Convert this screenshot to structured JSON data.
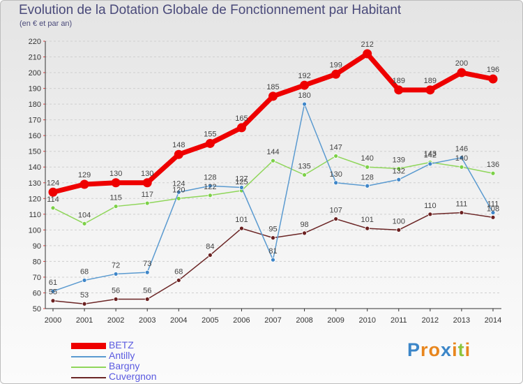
{
  "title": "Evolution de la Dotation Globale de Fonctionnement par Habitant",
  "subtitle": "(en € et par an)",
  "logo": {
    "text": "Proxiti",
    "letters": [
      "P",
      "r",
      "o",
      "x",
      "i",
      "t",
      "i"
    ],
    "colors": [
      "#3c86c8",
      "#e8861e",
      "#e8861e",
      "#3c86c8",
      "#e8861e",
      "#8cc43c",
      "#e8861e"
    ]
  },
  "chart_data": {
    "type": "line",
    "title": "Evolution de la Dotation Globale de Fonctionnement par Habitant",
    "subtitle": "(en € et par an)",
    "xlabel": "",
    "ylabel": "",
    "ylim": [
      50,
      220
    ],
    "yticks": [
      50,
      60,
      70,
      80,
      90,
      100,
      110,
      120,
      130,
      140,
      150,
      160,
      170,
      180,
      190,
      200,
      210,
      220
    ],
    "categories": [
      "2000",
      "2001",
      "2002",
      "2003",
      "2004",
      "2005",
      "2006",
      "2007",
      "2008",
      "2009",
      "2010",
      "2011",
      "2012",
      "2013",
      "2014"
    ],
    "grid": "horizontal dashed",
    "legend_position": "bottom-left",
    "series": [
      {
        "name": "BETZ",
        "color": "#ee0000",
        "values": [
          124,
          129,
          130,
          130,
          148,
          155,
          165,
          185,
          192,
          199,
          212,
          189,
          189,
          200,
          196
        ]
      },
      {
        "name": "Antilly",
        "color": "#5a9ad0",
        "values": [
          61,
          68,
          72,
          73,
          124,
          128,
          127,
          81,
          180,
          130,
          128,
          132,
          142,
          146,
          111
        ]
      },
      {
        "name": "Bargny",
        "color": "#8fd65a",
        "values": [
          114,
          104,
          115,
          117,
          120,
          122,
          125,
          144,
          135,
          147,
          140,
          139,
          143,
          140,
          136
        ]
      },
      {
        "name": "Cuvergnon",
        "color": "#6b2525",
        "values": [
          55,
          53,
          56,
          56,
          68,
          84,
          101,
          95,
          98,
          107,
          101,
          100,
          110,
          111,
          108
        ]
      }
    ]
  }
}
